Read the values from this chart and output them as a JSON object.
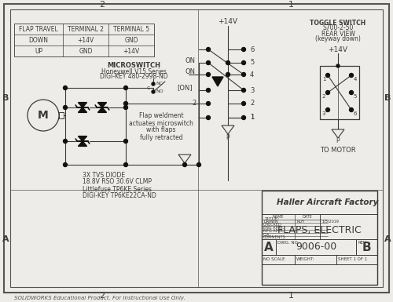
{
  "bg_color": "#eeece8",
  "border_color": "#555555",
  "line_color": "#3a3a3a",
  "title": "FLAPS, ELECTRIC",
  "company": "Haller Aircraft Factory",
  "dwg_no": "9006-00",
  "rev": "B",
  "size": "A",
  "sheet": "SHEET 1 OF 1",
  "solidworks_note": "SOLIDWORKS Educational Product. For Instructional Use Only.",
  "table_headers": [
    "FLAP TRAVEL",
    "TERMINAL 2",
    "TERMINAL 5"
  ],
  "table_rows": [
    [
      "DOWN",
      "+14V",
      "GND"
    ],
    [
      "UP",
      "GND",
      "+14V"
    ]
  ],
  "microswitch_label": [
    "MICROSWITCH",
    "Honeywell V15 Series",
    "DIGI-KEY 480-2998-ND"
  ],
  "toggle_label": [
    "TOGGLE SWITCH",
    "S700-2-50",
    "REAR VIEW",
    "(keyway down)"
  ],
  "flap_label": [
    "Flap weldment",
    "actuates microswitch",
    "with flaps",
    "fully retracted"
  ],
  "tvs_label": [
    "3X TVS DIODE",
    "18.8V RSO 30.6V CLMP",
    "Littlefuse TP6KE Series",
    "DIGI-KEY TP6KE22CA-ND"
  ]
}
